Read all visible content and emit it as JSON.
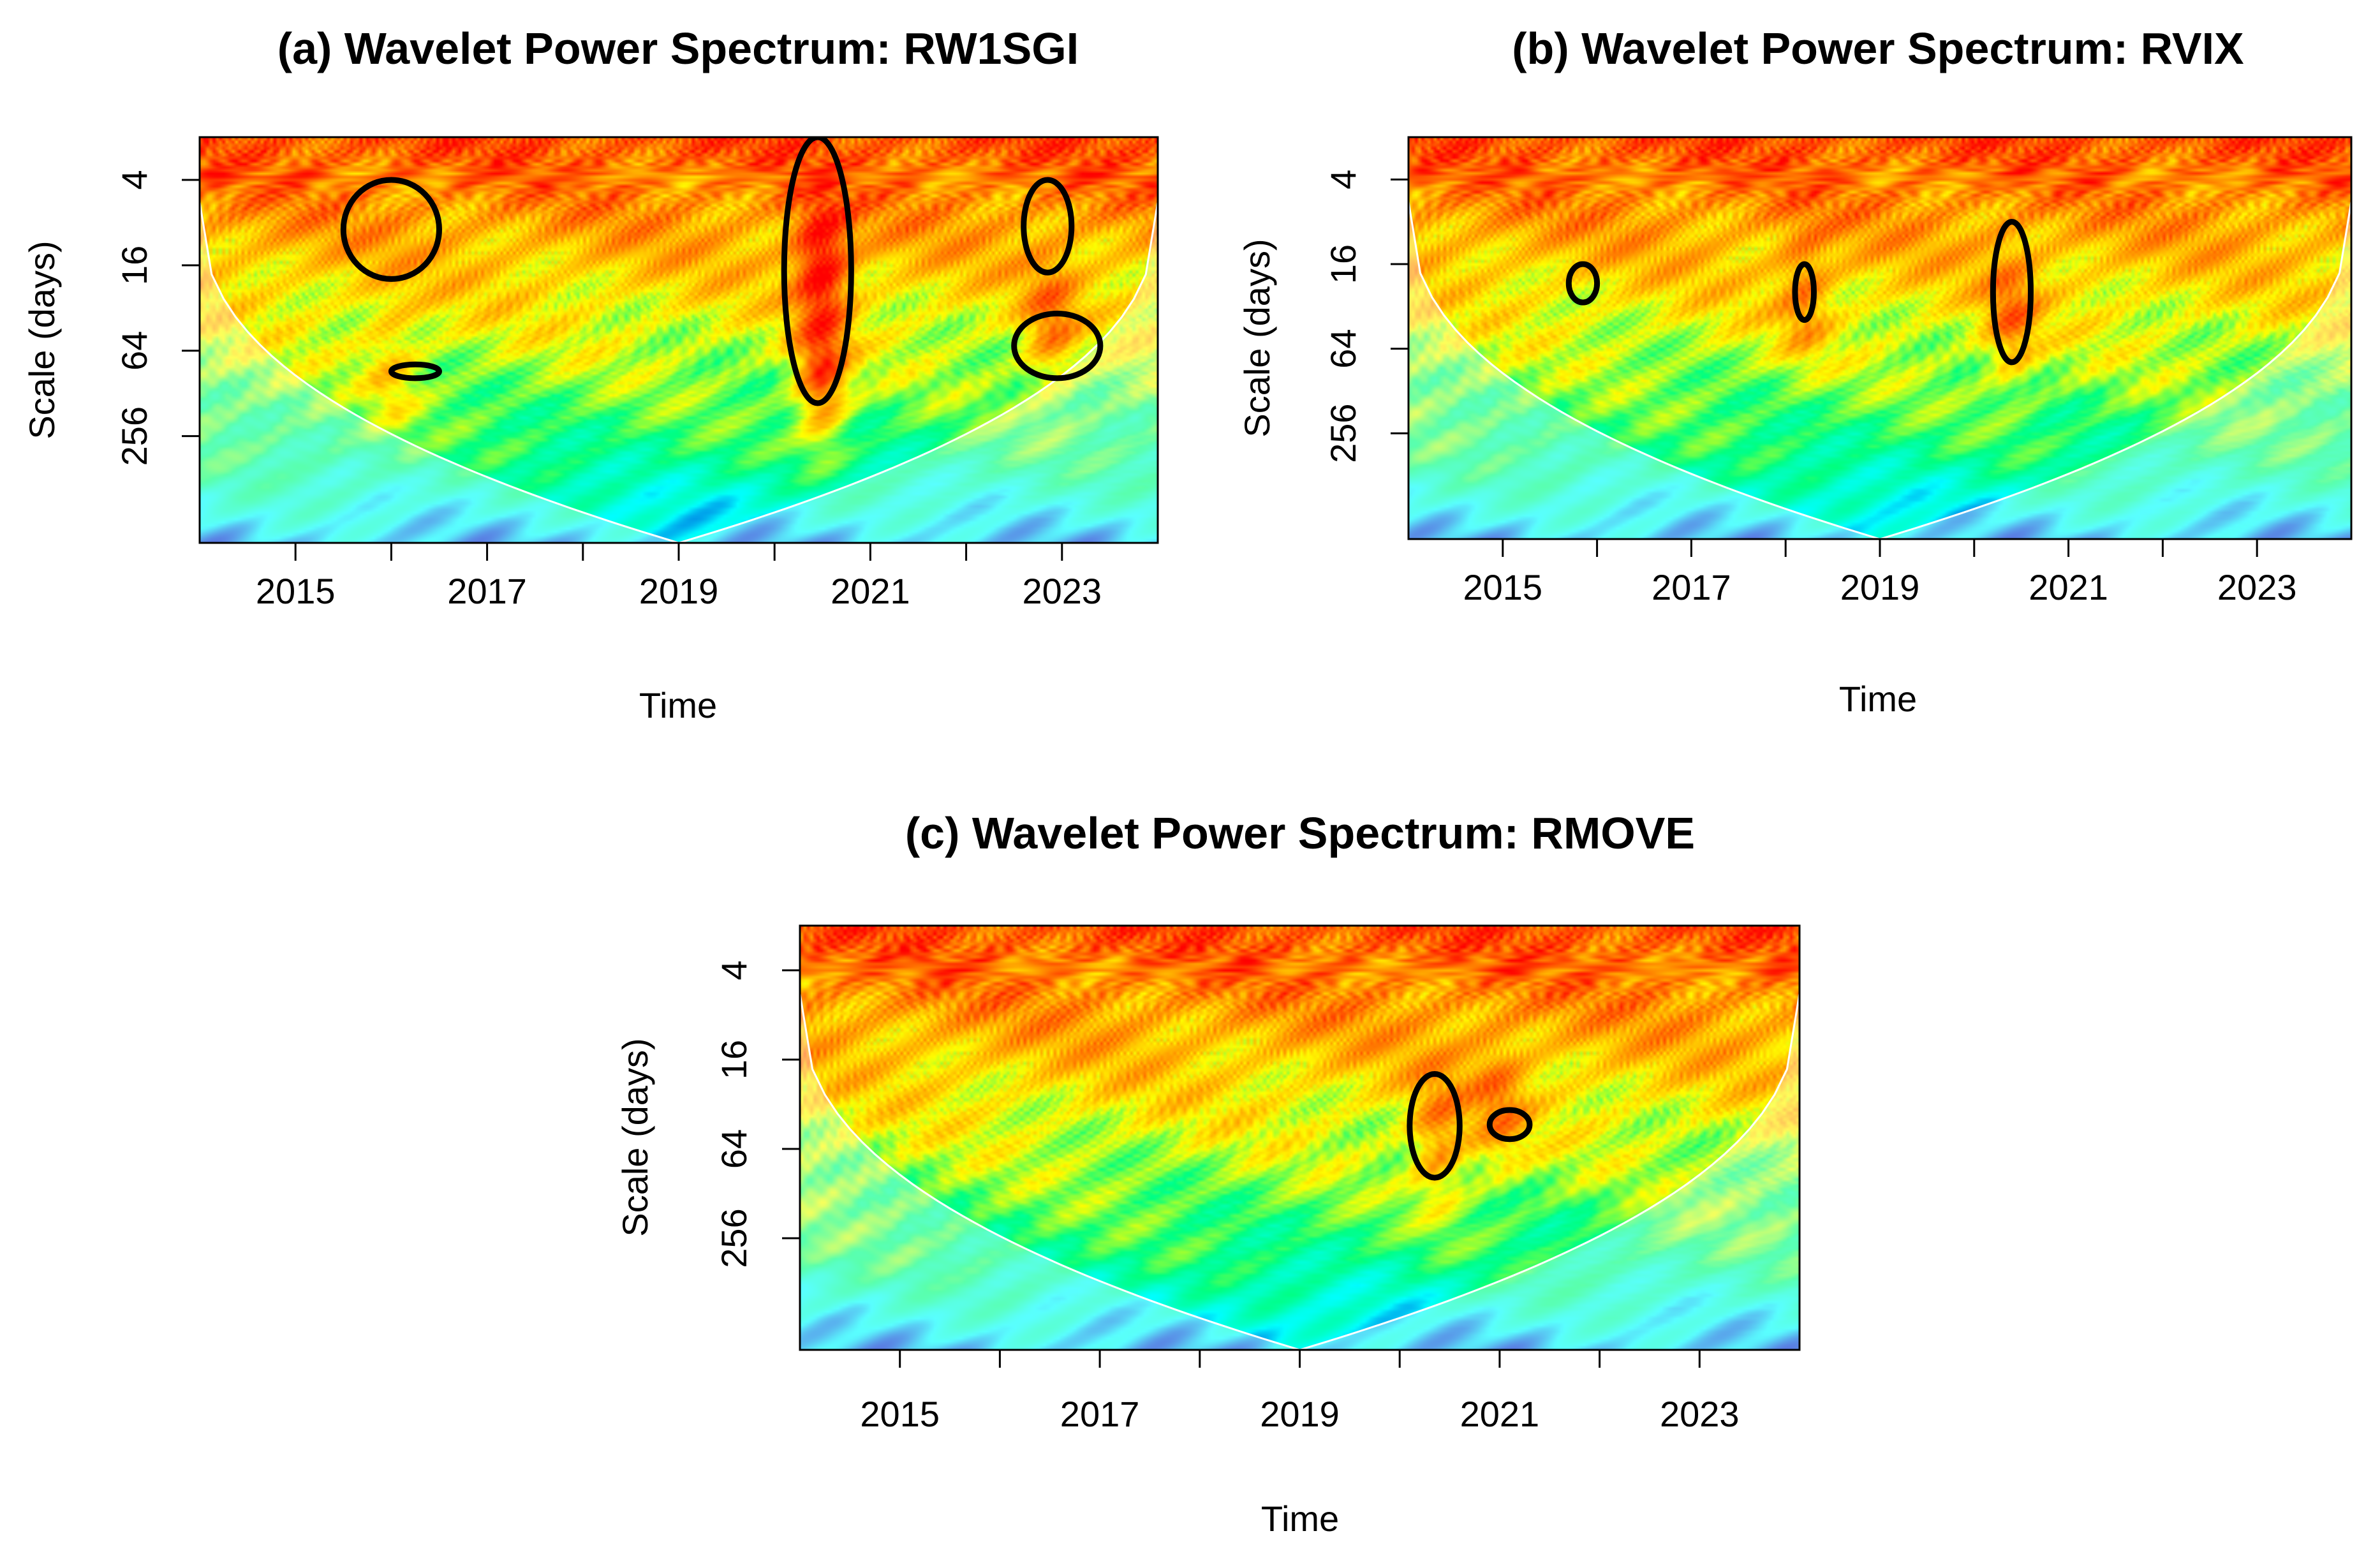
{
  "chart_data": [
    {
      "type": "heatmap",
      "subtype": "wavelet-power-spectrum",
      "title": "(a) Wavelet Power Spectrum: RW1SGI",
      "xlabel": "Time",
      "ylabel": "Scale (days)",
      "xlim": [
        2014.0,
        2024.0
      ],
      "x_ticks": [
        2015,
        2016,
        2017,
        2018,
        2019,
        2020,
        2021,
        2022,
        2023
      ],
      "x_tick_labels": [
        "2015",
        "2017",
        "2019",
        "2021",
        "2023"
      ],
      "y_scale": "log2",
      "ylim_log2": [
        1,
        10.5
      ],
      "y_ticks": [
        4,
        16,
        64,
        256
      ],
      "y_tick_labels": [
        "4",
        "16",
        "64",
        "256"
      ],
      "colormap": [
        "#0000c8",
        "#00ffff",
        "#00ff80",
        "#ffff00",
        "#ff8000",
        "#ff0000"
      ],
      "hot_spots": [
        {
          "t": 2020.5,
          "log2_scale": 6.8,
          "strength": 1.0
        },
        {
          "t": 2020.5,
          "log2_scale": 4.0,
          "strength": 0.9
        },
        {
          "t": 2022.9,
          "log2_scale": 5.6,
          "strength": 0.55
        },
        {
          "t": 2016.0,
          "log2_scale": 6.5,
          "strength": 0.4
        }
      ],
      "significance_contours": [
        {
          "t": [
            2020.1,
            2020.8
          ],
          "scale_days": [
            2,
            150
          ]
        },
        {
          "t": [
            2016.0,
            2016.5
          ],
          "scale_days": [
            80,
            100
          ]
        },
        {
          "t": [
            2022.5,
            2023.4
          ],
          "scale_days": [
            35,
            100
          ]
        },
        {
          "t": [
            2015.5,
            2016.5
          ],
          "scale_days": [
            4,
            20
          ]
        },
        {
          "t": [
            2022.6,
            2023.1
          ],
          "scale_days": [
            4,
            18
          ]
        }
      ]
    },
    {
      "type": "heatmap",
      "subtype": "wavelet-power-spectrum",
      "title": "(b) Wavelet Power Spectrum: RVIX",
      "xlabel": "Time",
      "ylabel": "Scale (days)",
      "xlim": [
        2014.0,
        2024.0
      ],
      "x_ticks": [
        2015,
        2016,
        2017,
        2018,
        2019,
        2020,
        2021,
        2022,
        2023
      ],
      "x_tick_labels": [
        "2015",
        "2017",
        "2019",
        "2021",
        "2023"
      ],
      "y_scale": "log2",
      "ylim_log2": [
        1,
        10.5
      ],
      "y_ticks": [
        4,
        16,
        64,
        256
      ],
      "y_tick_labels": [
        "4",
        "16",
        "64",
        "256"
      ],
      "colormap": [
        "#0000c8",
        "#00ffff",
        "#00ff80",
        "#ffff00",
        "#ff8000",
        "#ff0000"
      ],
      "hot_spots": [
        {
          "t": 2020.4,
          "log2_scale": 5.5,
          "strength": 0.55
        },
        {
          "t": 2018.2,
          "log2_scale": 4.8,
          "strength": 0.45
        }
      ],
      "significance_contours": [
        {
          "t": [
            2020.2,
            2020.6
          ],
          "scale_days": [
            8,
            80
          ]
        },
        {
          "t": [
            2018.1,
            2018.3
          ],
          "scale_days": [
            16,
            40
          ]
        },
        {
          "t": [
            2015.7,
            2016.0
          ],
          "scale_days": [
            16,
            30
          ]
        }
      ]
    },
    {
      "type": "heatmap",
      "subtype": "wavelet-power-spectrum",
      "title": "(c) Wavelet Power Spectrum: RMOVE",
      "xlabel": "Time",
      "ylabel": "Scale (days)",
      "xlim": [
        2014.0,
        2024.0
      ],
      "x_ticks": [
        2015,
        2016,
        2017,
        2018,
        2019,
        2020,
        2021,
        2022,
        2023
      ],
      "x_tick_labels": [
        "2015",
        "2017",
        "2019",
        "2021",
        "2023"
      ],
      "y_scale": "log2",
      "ylim_log2": [
        1,
        10.5
      ],
      "y_ticks": [
        4,
        16,
        64,
        256
      ],
      "y_tick_labels": [
        "4",
        "16",
        "64",
        "256"
      ],
      "colormap": [
        "#0000c8",
        "#00ffff",
        "#00ff80",
        "#ffff00",
        "#ff8000",
        "#ff0000"
      ],
      "hot_spots": [
        {
          "t": 2020.4,
          "log2_scale": 6.0,
          "strength": 0.6
        },
        {
          "t": 2021.0,
          "log2_scale": 5.2,
          "strength": 0.45
        }
      ],
      "significance_contours": [
        {
          "t": [
            2020.1,
            2020.6
          ],
          "scale_days": [
            20,
            100
          ]
        },
        {
          "t": [
            2020.9,
            2021.3
          ],
          "scale_days": [
            35,
            55
          ]
        }
      ]
    }
  ]
}
